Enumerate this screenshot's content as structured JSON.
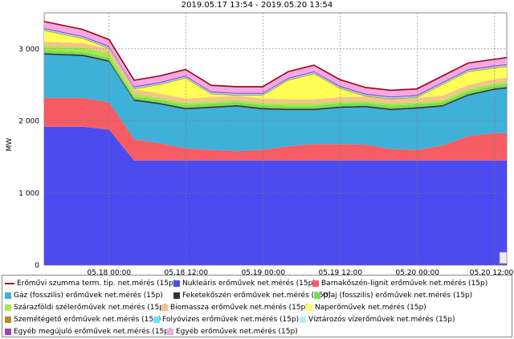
{
  "chart_data": {
    "type": "area",
    "title": "2019.05.17 13:54 - 2019.05.20 13:54",
    "xlabel": "",
    "ylabel": "MW",
    "ylim": [
      0,
      3500
    ],
    "x_ticks": [
      "05.18 00:00",
      "05.18 12:00",
      "05.19 00:00",
      "05.19 12:00",
      "05.20 00:00",
      "05.20 12:00"
    ],
    "y_ticks": [
      "0",
      "1 000",
      "2 000",
      "3 000"
    ],
    "y_tick_values": [
      0,
      1000,
      2000,
      3000
    ],
    "grid": true,
    "legend_position": "bottom",
    "x_hours": [
      0,
      6,
      10.1,
      14,
      18,
      22,
      26,
      30,
      34,
      38,
      42,
      46,
      50,
      54,
      58,
      62,
      66,
      70,
      72
    ],
    "series": [
      {
        "name": "Nukleáris erőművek net.mérés (15p)",
        "color": "#4b4bf0",
        "values": [
          1920,
          1920,
          1880,
          1450,
          1450,
          1450,
          1450,
          1450,
          1450,
          1450,
          1450,
          1450,
          1450,
          1450,
          1450,
          1450,
          1450,
          1450,
          1450
        ]
      },
      {
        "name": "Barnakőszén-lignit erőművek net.mérés (15p)",
        "color": "#f65c63",
        "values": [
          400,
          400,
          380,
          300,
          240,
          170,
          150,
          130,
          150,
          200,
          230,
          230,
          220,
          160,
          150,
          210,
          340,
          380,
          380
        ]
      },
      {
        "name": "Gáz (fosszilis) erőművek net.mérés (15p)",
        "color": "#3fb0d8",
        "values": [
          600,
          580,
          560,
          530,
          540,
          540,
          580,
          620,
          560,
          500,
          470,
          500,
          520,
          540,
          570,
          540,
          560,
          600,
          620
        ]
      },
      {
        "name": "Feketekőszén erőművek net.mérés (15p)",
        "color": "#333333",
        "values": [
          20,
          20,
          20,
          20,
          20,
          20,
          20,
          20,
          20,
          20,
          20,
          20,
          20,
          20,
          20,
          20,
          20,
          20,
          20
        ]
      },
      {
        "name": "Olaj (fosszilis) erőművek net.mérés (15p)",
        "color": "#77dd55",
        "values": [
          40,
          40,
          40,
          40,
          40,
          40,
          40,
          40,
          40,
          40,
          40,
          40,
          40,
          40,
          40,
          40,
          40,
          40,
          40
        ]
      },
      {
        "name": "Szárazföldi szélerőművek net.mérés (15p)",
        "color": "#a6e84a",
        "values": [
          60,
          60,
          60,
          40,
          30,
          30,
          30,
          30,
          30,
          30,
          30,
          30,
          30,
          30,
          30,
          30,
          30,
          30,
          30
        ]
      },
      {
        "name": "Biomassza erőművek net.mérés (15p)",
        "color": "#f5c48a",
        "values": [
          60,
          60,
          60,
          60,
          60,
          60,
          60,
          60,
          60,
          60,
          60,
          60,
          60,
          60,
          60,
          60,
          60,
          60,
          60
        ]
      },
      {
        "name": "Naperőművek net.mérés (15p)",
        "color": "#ffff55",
        "values": [
          150,
          60,
          0,
          0,
          120,
          280,
          40,
          0,
          40,
          260,
          350,
          120,
          0,
          0,
          0,
          150,
          180,
          150,
          150
        ]
      },
      {
        "name": "Szemétégető erőművek net.mérés (15p)",
        "color": "#b58e1e",
        "values": [
          10,
          10,
          10,
          10,
          10,
          10,
          10,
          10,
          10,
          10,
          10,
          10,
          10,
          10,
          10,
          10,
          10,
          10,
          10
        ]
      },
      {
        "name": "Folyóvizes erőművek net.mérés (15p)",
        "color": "#66e0ff",
        "values": [
          10,
          10,
          10,
          10,
          10,
          10,
          10,
          10,
          10,
          10,
          10,
          10,
          10,
          10,
          10,
          10,
          10,
          10,
          10
        ]
      },
      {
        "name": "Víztározós vízerőművek net.mérés (15p)",
        "color": "#b0f0f8",
        "values": [
          5,
          5,
          5,
          5,
          5,
          5,
          5,
          5,
          5,
          5,
          5,
          5,
          5,
          5,
          5,
          5,
          5,
          5,
          5
        ]
      },
      {
        "name": "Egyéb megújuló erőművek net.mérés (15p)",
        "color": "#a040c0",
        "values": [
          15,
          15,
          15,
          15,
          15,
          15,
          15,
          15,
          15,
          15,
          15,
          15,
          15,
          15,
          15,
          15,
          15,
          15,
          15
        ]
      },
      {
        "name": "Egyéb erőművek net.mérés (15p)",
        "color": "#f4a8e4",
        "values": [
          90,
          90,
          90,
          85,
          85,
          85,
          85,
          85,
          85,
          85,
          85,
          85,
          85,
          85,
          85,
          85,
          85,
          85,
          90
        ]
      }
    ],
    "total_line": {
      "name": "Erőművi szumma term. tip. net.mérés (15p)",
      "color": "#a00010"
    }
  }
}
